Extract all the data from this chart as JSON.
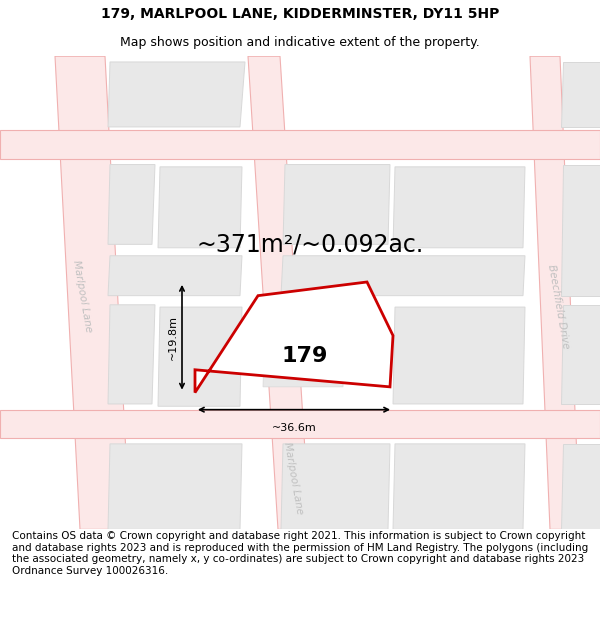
{
  "title_line1": "179, MARLPOOL LANE, KIDDERMINSTER, DY11 5HP",
  "title_line2": "Map shows position and indicative extent of the property.",
  "area_text": "~371m²/~0.092ac.",
  "property_label": "179",
  "dim_width": "~36.6m",
  "dim_height": "~19.8m",
  "footer_text": "Contains OS data © Crown copyright and database right 2021. This information is subject to Crown copyright and database rights 2023 and is reproduced with the permission of HM Land Registry. The polygons (including the associated geometry, namely x, y co-ordinates) are subject to Crown copyright and database rights 2023 Ordnance Survey 100026316.",
  "bg_color": "#ffffff",
  "map_bg_color": "#ffffff",
  "road_fill_color": "#fce8e8",
  "road_line_color": "#f0b0b0",
  "block_fill_color": "#e8e8e8",
  "block_edge_color": "#d8d8d8",
  "property_fill_color": "#ffffff",
  "property_edge_color": "#cc0000",
  "street_label_color": "#c0c0c0",
  "title_fontsize": 10,
  "subtitle_fontsize": 9,
  "area_fontsize": 17,
  "label_fontsize": 16,
  "footer_fontsize": 7.5,
  "dim_fontsize": 8
}
